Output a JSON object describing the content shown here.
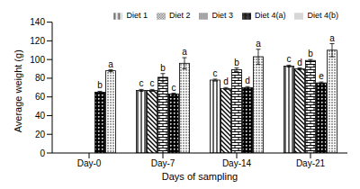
{
  "chart_data": {
    "type": "bar",
    "x_label": "Days of sampling",
    "y_label": "Average weight (g)",
    "categories": [
      "Day-0",
      "Day-7",
      "Day-14",
      "Day-21"
    ],
    "ylim": [
      0,
      140
    ],
    "yticks": [
      0,
      20,
      40,
      60,
      80,
      100,
      120,
      140
    ],
    "grid": false,
    "legend": "top",
    "series": [
      {
        "name": "Diet 1",
        "color": "#000000",
        "values": [
          null,
          67,
          78,
          93
        ],
        "errors": [
          null,
          1,
          1,
          1
        ],
        "letters": [
          null,
          "c",
          "c",
          "c"
        ]
      },
      {
        "name": "Diet 2",
        "color": "#000000",
        "values": [
          null,
          67,
          69,
          90
        ],
        "errors": [
          null,
          1,
          1,
          1
        ],
        "letters": [
          null,
          "c",
          "d",
          "d"
        ]
      },
      {
        "name": "Diet 3",
        "color": "#000000",
        "values": [
          null,
          81,
          89,
          99
        ],
        "errors": [
          null,
          4,
          2,
          1
        ],
        "letters": [
          null,
          "b",
          "b",
          "b"
        ]
      },
      {
        "name": "Diet 4(a)",
        "color": "#000000",
        "values": [
          65,
          63,
          70,
          75
        ],
        "errors": [
          1,
          1,
          1,
          1
        ],
        "letters": [
          "b",
          "c",
          "d",
          "e"
        ]
      },
      {
        "name": "Diet 4(b)",
        "color": "#000000",
        "values": [
          88,
          96,
          103,
          110
        ],
        "errors": [
          1,
          6,
          8,
          7
        ],
        "letters": [
          "a",
          "a",
          "a",
          "a"
        ]
      }
    ]
  }
}
